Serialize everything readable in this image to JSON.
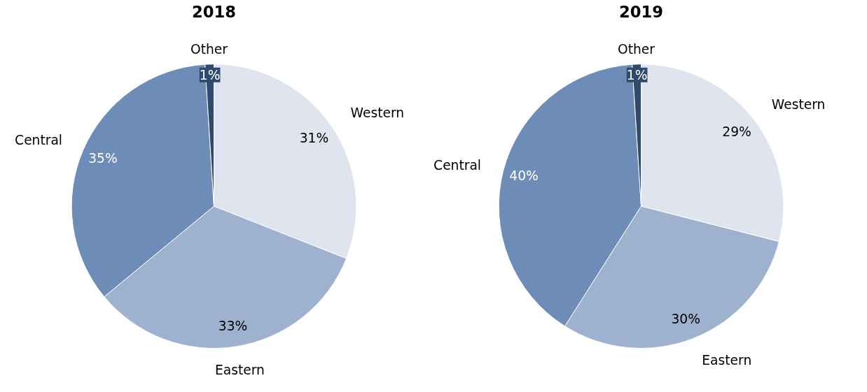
{
  "chart_data": [
    {
      "type": "pie",
      "title": "2018",
      "categories": [
        "Western",
        "Eastern",
        "Central",
        "Other"
      ],
      "values": [
        31,
        33,
        35,
        1
      ],
      "colors": [
        "#dfe4ee",
        "#9eb1cf",
        "#6d8cb7",
        "#2e4a6e"
      ],
      "value_labels": [
        "31%",
        "33%",
        "35%",
        "1%"
      ]
    },
    {
      "type": "pie",
      "title": "2019",
      "categories": [
        "Western",
        "Eastern",
        "Central",
        "Other"
      ],
      "values": [
        29,
        30,
        40,
        1
      ],
      "colors": [
        "#dfe4ee",
        "#9eb1cf",
        "#6d8cb7",
        "#2e4a6e"
      ],
      "value_labels": [
        "29%",
        "30%",
        "40%",
        "1%"
      ]
    }
  ]
}
